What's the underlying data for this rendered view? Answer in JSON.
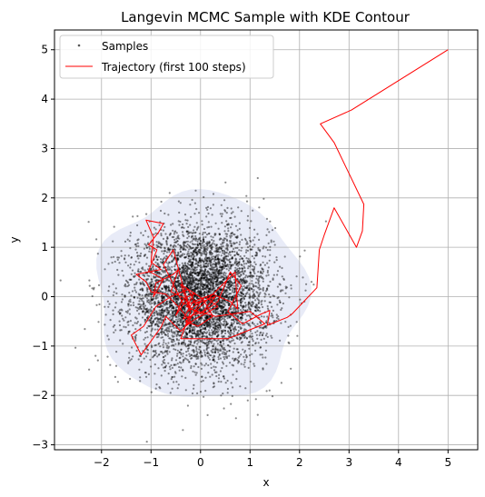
{
  "chart_data": {
    "type": "scatter",
    "title": "Langevin MCMC Sample with KDE Contour",
    "xlabel": "x",
    "ylabel": "y",
    "xlim": [
      -2.95,
      5.6
    ],
    "ylim": [
      -3.1,
      5.4
    ],
    "xticks": [
      -2,
      -1,
      0,
      1,
      2,
      3,
      4,
      5
    ],
    "yticks": [
      -3,
      -2,
      -1,
      0,
      1,
      2,
      3,
      4,
      5
    ],
    "grid": true,
    "legend_position": "top-left",
    "legend": [
      {
        "label": "Samples",
        "color": "#555555",
        "marker": "dot"
      },
      {
        "label": "Trajectory (first 100 steps)",
        "color": "#ff0000",
        "marker": "line"
      }
    ],
    "series": [
      {
        "name": "Samples",
        "kind": "scatter",
        "color": "#000000",
        "distribution": {
          "mean": [
            0,
            0
          ],
          "std": [
            0.7,
            0.7
          ],
          "count": 5000
        }
      },
      {
        "name": "Trajectory (first 100 steps)",
        "kind": "line",
        "color": "#ff0000",
        "points": [
          [
            5.0,
            5.0
          ],
          [
            3.05,
            3.78
          ],
          [
            2.42,
            3.5
          ],
          [
            2.7,
            3.12
          ],
          [
            3.3,
            1.87
          ],
          [
            3.27,
            1.33
          ],
          [
            3.15,
            1.0
          ],
          [
            2.7,
            1.8
          ],
          [
            2.5,
            1.25
          ],
          [
            2.4,
            0.95
          ],
          [
            2.35,
            0.18
          ],
          [
            1.85,
            -0.35
          ],
          [
            1.75,
            -0.42
          ],
          [
            1.35,
            -0.58
          ],
          [
            1.4,
            -0.28
          ],
          [
            1.23,
            -0.35
          ],
          [
            0.85,
            -0.55
          ],
          [
            0.55,
            -0.3
          ],
          [
            0.82,
            0.22
          ],
          [
            0.6,
            0.5
          ],
          [
            0.35,
            -0.1
          ],
          [
            0.0,
            -0.35
          ],
          [
            -0.28,
            -0.2
          ],
          [
            -0.12,
            0.08
          ],
          [
            -0.38,
            -0.08
          ],
          [
            -0.5,
            -0.38
          ],
          [
            -0.28,
            -0.05
          ],
          [
            -0.6,
            0.1
          ],
          [
            -0.45,
            0.55
          ],
          [
            -0.55,
            0.45
          ],
          [
            -0.9,
            0.28
          ],
          [
            -0.95,
            0.0
          ],
          [
            -0.75,
            0.35
          ],
          [
            -1.05,
            0.52
          ],
          [
            -0.88,
            0.95
          ],
          [
            -1.05,
            1.05
          ],
          [
            -0.85,
            1.3
          ],
          [
            -0.75,
            1.48
          ],
          [
            -1.1,
            1.55
          ],
          [
            -0.95,
            1.2
          ],
          [
            -1.0,
            0.7
          ],
          [
            -0.8,
            0.55
          ],
          [
            -1.3,
            0.45
          ],
          [
            -1.1,
            0.3
          ],
          [
            -1.0,
            0.1
          ],
          [
            -0.7,
            0.05
          ],
          [
            -0.45,
            -0.2
          ],
          [
            -0.2,
            -0.5
          ],
          [
            -0.4,
            -0.7
          ],
          [
            -0.7,
            -0.4
          ],
          [
            -0.8,
            -0.62
          ],
          [
            -1.2,
            -1.18
          ],
          [
            -1.4,
            -0.78
          ],
          [
            -1.15,
            -0.6
          ],
          [
            -0.9,
            -0.2
          ],
          [
            -0.6,
            0.0
          ],
          [
            -0.25,
            0.15
          ],
          [
            -0.1,
            -0.15
          ],
          [
            0.3,
            0.0
          ],
          [
            0.05,
            -0.3
          ],
          [
            -0.35,
            -0.45
          ],
          [
            -0.15,
            -0.1
          ],
          [
            0.25,
            0.05
          ],
          [
            0.6,
            -0.1
          ],
          [
            0.75,
            -0.25
          ],
          [
            0.7,
            0.5
          ],
          [
            0.4,
            0.2
          ],
          [
            -0.05,
            -0.25
          ],
          [
            -0.3,
            -0.5
          ],
          [
            -0.05,
            -0.6
          ],
          [
            0.25,
            -0.4
          ],
          [
            0.05,
            -0.05
          ],
          [
            -0.4,
            0.25
          ],
          [
            -0.2,
            -0.3
          ],
          [
            -0.4,
            -0.85
          ],
          [
            0.55,
            -0.85
          ],
          [
            1.3,
            -0.55
          ],
          [
            1.0,
            -0.3
          ],
          [
            0.3,
            -0.4
          ],
          [
            -0.2,
            -0.25
          ],
          [
            -0.35,
            0.2
          ],
          [
            -0.55,
            0.95
          ],
          [
            -0.75,
            0.65
          ],
          [
            -0.35,
            -0.15
          ],
          [
            0.0,
            -0.1
          ],
          [
            -0.3,
            -0.6
          ],
          [
            -0.1,
            -0.45
          ],
          [
            0.35,
            -0.2
          ],
          [
            0.1,
            0.0
          ],
          [
            -0.25,
            -0.3
          ]
        ]
      }
    ],
    "kde_contour": {
      "center": [
        0,
        0
      ],
      "radius_x": 2.1,
      "radius_y": 2.1,
      "fill": "#e8ebf7"
    }
  }
}
